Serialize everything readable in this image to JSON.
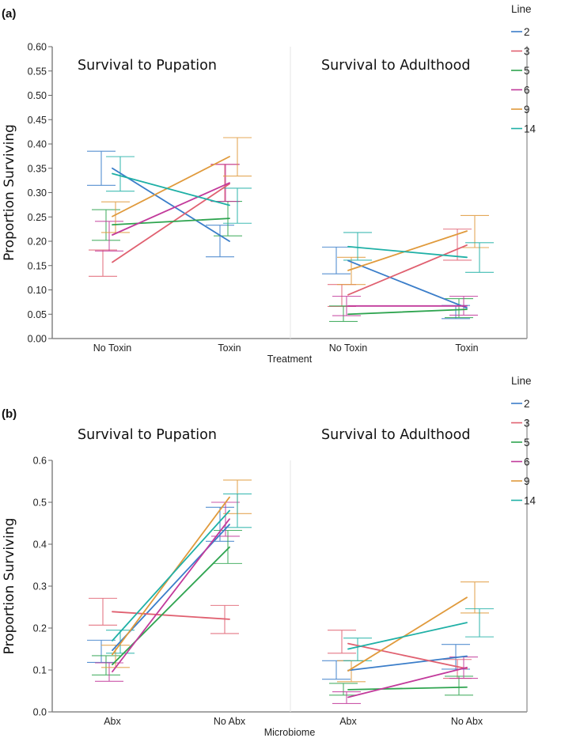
{
  "chart_data": [
    {
      "type": "line",
      "panel_label": "(a)",
      "ylabel": "Proportion Surviving",
      "xlabel": "Treatment",
      "ylim": [
        0,
        0.6
      ],
      "yticks": [
        "0.00",
        "0.05",
        "0.10",
        "0.15",
        "0.20",
        "0.25",
        "0.30",
        "0.35",
        "0.40",
        "0.45",
        "0.50",
        "0.55",
        "0.60"
      ],
      "legend": {
        "title": "Line",
        "placement": "right"
      },
      "subplots": [
        {
          "title": "Survival to Pupation",
          "categories": [
            "No Toxin",
            "Toxin"
          ],
          "series": [
            {
              "name": "2",
              "color": "#3a7dc9",
              "values": [
                0.35,
                0.2
              ],
              "err_low": [
                0.315,
                0.168
              ],
              "err_high": [
                0.385,
                0.233
              ]
            },
            {
              "name": "3",
              "color": "#e06070",
              "values": [
                0.157,
                0.318
              ],
              "err_low": [
                0.128,
                0.282
              ],
              "err_high": [
                0.182,
                0.358
              ]
            },
            {
              "name": "5",
              "color": "#2ea44f",
              "values": [
                0.234,
                0.247
              ],
              "err_low": [
                0.202,
                0.211
              ],
              "err_high": [
                0.265,
                0.282
              ]
            },
            {
              "name": "6",
              "color": "#c23a9b",
              "values": [
                0.213,
                0.32
              ],
              "err_low": [
                0.18,
                0.282
              ],
              "err_high": [
                0.241,
                0.358
              ]
            },
            {
              "name": "9",
              "color": "#e09a3c",
              "values": [
                0.251,
                0.374
              ],
              "err_low": [
                0.218,
                0.334
              ],
              "err_high": [
                0.281,
                0.413
              ]
            },
            {
              "name": "14",
              "color": "#1fb0a6",
              "values": [
                0.339,
                0.274
              ],
              "err_low": [
                0.303,
                0.237
              ],
              "err_high": [
                0.374,
                0.309
              ]
            }
          ]
        },
        {
          "title": "Survival to Adulthood",
          "categories": [
            "No Toxin",
            "Toxin"
          ],
          "series": [
            {
              "name": "2",
              "color": "#3a7dc9",
              "values": [
                0.16,
                0.063
              ],
              "err_low": [
                0.133,
                0.041
              ],
              "err_high": [
                0.188,
                0.068
              ]
            },
            {
              "name": "3",
              "color": "#e06070",
              "values": [
                0.09,
                0.192
              ],
              "err_low": [
                0.066,
                0.161
              ],
              "err_high": [
                0.111,
                0.225
              ]
            },
            {
              "name": "5",
              "color": "#2ea44f",
              "values": [
                0.05,
                0.06
              ],
              "err_low": [
                0.035,
                0.043
              ],
              "err_high": [
                0.067,
                0.082
              ]
            },
            {
              "name": "6",
              "color": "#c23a9b",
              "values": [
                0.067,
                0.067
              ],
              "err_low": [
                0.047,
                0.048
              ],
              "err_high": [
                0.087,
                0.087
              ]
            },
            {
              "name": "9",
              "color": "#e09a3c",
              "values": [
                0.14,
                0.221
              ],
              "err_low": [
                0.111,
                0.187
              ],
              "err_high": [
                0.167,
                0.253
              ]
            },
            {
              "name": "14",
              "color": "#1fb0a6",
              "values": [
                0.189,
                0.167
              ],
              "err_low": [
                0.161,
                0.136
              ],
              "err_high": [
                0.218,
                0.197
              ]
            }
          ]
        }
      ]
    },
    {
      "type": "line",
      "panel_label": "(b)",
      "ylabel": "Proportion Surviving",
      "xlabel": "Microbiome",
      "ylim": [
        0,
        0.6
      ],
      "yticks": [
        "0.0",
        "0.1",
        "0.2",
        "0.3",
        "0.4",
        "0.5",
        "0.6"
      ],
      "legend": {
        "title": "Line",
        "placement": "right"
      },
      "subplots": [
        {
          "title": "Survival to Pupation",
          "categories": [
            "Abx",
            "No Abx"
          ],
          "series": [
            {
              "name": "2",
              "color": "#3a7dc9",
              "values": [
                0.147,
                0.447
              ],
              "err_low": [
                0.118,
                0.407
              ],
              "err_high": [
                0.171,
                0.488
              ]
            },
            {
              "name": "3",
              "color": "#e06070",
              "values": [
                0.239,
                0.221
              ],
              "err_low": [
                0.207,
                0.187
              ],
              "err_high": [
                0.271,
                0.254
              ]
            },
            {
              "name": "5",
              "color": "#2ea44f",
              "values": [
                0.113,
                0.393
              ],
              "err_low": [
                0.088,
                0.354
              ],
              "err_high": [
                0.134,
                0.433
              ]
            },
            {
              "name": "6",
              "color": "#c23a9b",
              "values": [
                0.096,
                0.46
              ],
              "err_low": [
                0.073,
                0.419
              ],
              "err_high": [
                0.117,
                0.5
              ]
            },
            {
              "name": "9",
              "color": "#e09a3c",
              "values": [
                0.137,
                0.512
              ],
              "err_low": [
                0.106,
                0.473
              ],
              "err_high": [
                0.159,
                0.553
              ]
            },
            {
              "name": "14",
              "color": "#1fb0a6",
              "values": [
                0.17,
                0.48
              ],
              "err_low": [
                0.14,
                0.44
              ],
              "err_high": [
                0.195,
                0.52
              ]
            }
          ]
        },
        {
          "title": "Survival to Adulthood",
          "categories": [
            "Abx",
            "No Abx"
          ],
          "series": [
            {
              "name": "2",
              "color": "#3a7dc9",
              "values": [
                0.099,
                0.133
              ],
              "err_low": [
                0.078,
                0.102
              ],
              "err_high": [
                0.122,
                0.161
              ]
            },
            {
              "name": "3",
              "color": "#e06070",
              "values": [
                0.163,
                0.103
              ],
              "err_low": [
                0.14,
                0.08
              ],
              "err_high": [
                0.195,
                0.125
              ]
            },
            {
              "name": "5",
              "color": "#2ea44f",
              "values": [
                0.053,
                0.059
              ],
              "err_low": [
                0.04,
                0.04
              ],
              "err_high": [
                0.068,
                0.085
              ]
            },
            {
              "name": "6",
              "color": "#c23a9b",
              "values": [
                0.035,
                0.106
              ],
              "err_low": [
                0.02,
                0.08
              ],
              "err_high": [
                0.048,
                0.131
              ]
            },
            {
              "name": "9",
              "color": "#e09a3c",
              "values": [
                0.098,
                0.273
              ],
              "err_low": [
                0.072,
                0.236
              ],
              "err_high": [
                0.122,
                0.31
              ]
            },
            {
              "name": "14",
              "color": "#1fb0a6",
              "values": [
                0.15,
                0.213
              ],
              "err_low": [
                0.122,
                0.179
              ],
              "err_high": [
                0.176,
                0.246
              ]
            }
          ]
        }
      ]
    }
  ]
}
